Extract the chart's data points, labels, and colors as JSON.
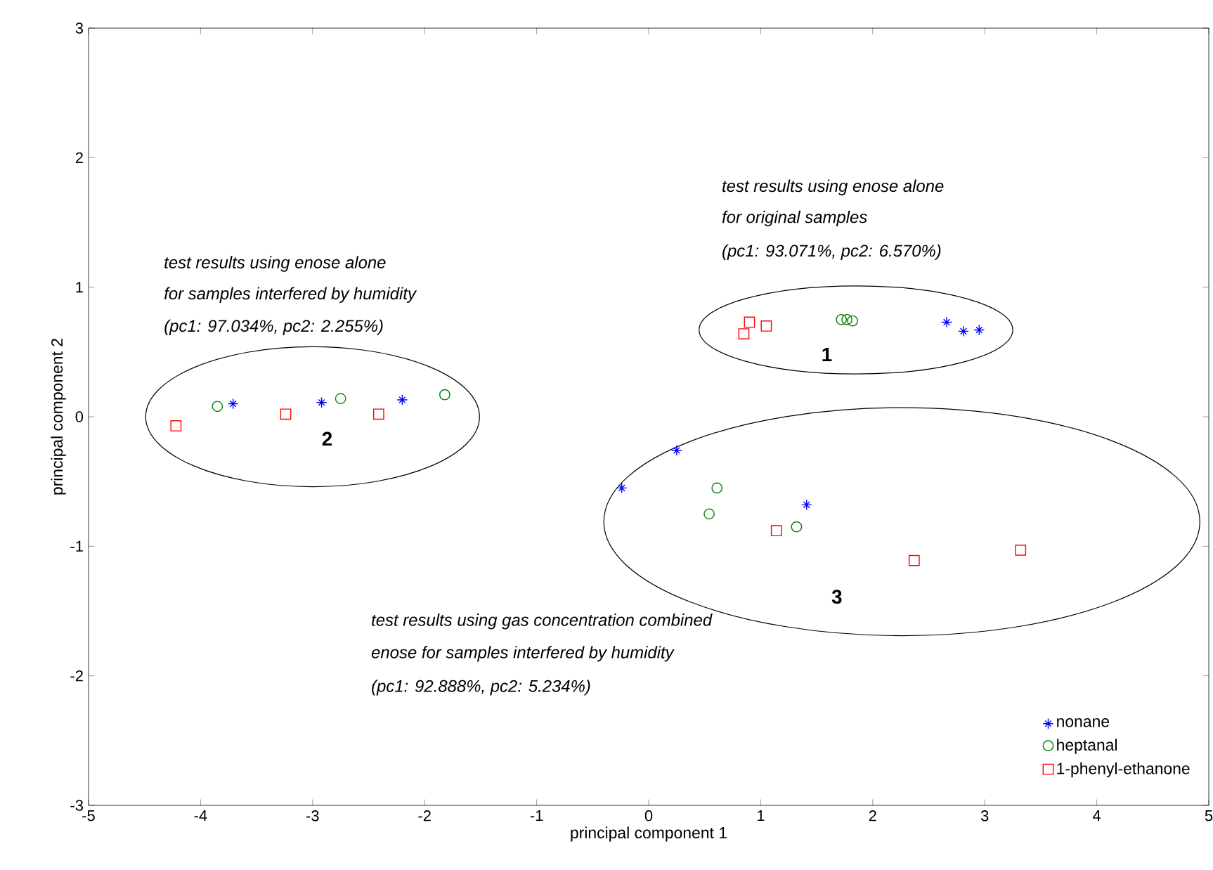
{
  "chart_data": {
    "type": "scatter",
    "xlabel": "principal component 1",
    "ylabel": "principal component 2",
    "xlim": [
      -5,
      5
    ],
    "ylim": [
      -3,
      3
    ],
    "xticks": [
      -5,
      -4,
      -3,
      -2,
      -1,
      0,
      1,
      2,
      3,
      4,
      5
    ],
    "yticks": [
      -3,
      -2,
      -1,
      0,
      1,
      2,
      3
    ],
    "grid": false,
    "legend": "bottom right",
    "series": [
      {
        "name": "nonane",
        "color": "#0000ff",
        "marker": "cross",
        "x": [
          -3.71,
          -2.92,
          -2.2,
          2.66,
          2.81,
          2.95,
          -0.24,
          0.25,
          1.41
        ],
        "values": [
          0.1,
          0.11,
          0.13,
          0.73,
          0.66,
          0.67,
          -0.55,
          -0.26,
          -0.68
        ]
      },
      {
        "name": "heptanal",
        "color": "#008000",
        "marker": "circle",
        "x": [
          -3.85,
          -2.75,
          -1.82,
          1.72,
          1.77,
          1.82,
          0.61,
          0.54,
          1.32
        ],
        "values": [
          0.08,
          0.14,
          0.17,
          0.75,
          0.75,
          0.74,
          -0.55,
          -0.75,
          -0.85
        ]
      },
      {
        "name": "1-phenyl-ethanone",
        "color": "#ff0000",
        "marker": "square",
        "x": [
          -4.22,
          -3.24,
          -2.41,
          0.85,
          0.9,
          1.05,
          1.14,
          2.37,
          3.32
        ],
        "values": [
          -0.07,
          0.02,
          0.02,
          0.64,
          0.73,
          0.7,
          -0.88,
          -1.11,
          -1.03
        ]
      }
    ],
    "annotations": [
      "test results using enose alone",
      "for original samples",
      "(pc1: 93.071%, pc2: 6.570%)",
      "test results using enose alone",
      "for samples interfered by humidity",
      "(pc1: 97.034%, pc2: 2.255%)",
      "test results using gas concentration combined",
      "enose for samples interfered by humidity",
      "(pc1: 92.888%, pc2: 5.234%)",
      "**1**",
      "**2**",
      "**3**"
    ]
  }
}
